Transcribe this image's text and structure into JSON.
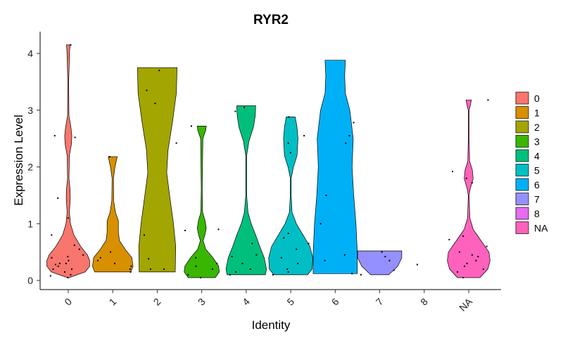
{
  "chart_data": {
    "type": "violin",
    "title": "RYR2",
    "xlabel": "Identity",
    "ylabel": "Expression Level",
    "categories": [
      "0",
      "1",
      "2",
      "3",
      "4",
      "5",
      "6",
      "7",
      "8",
      "NA"
    ],
    "ylim": [
      0,
      4.2
    ],
    "yticks": [
      0,
      1,
      2,
      3,
      4
    ],
    "legend_position": "right",
    "colors": [
      "#F8766D",
      "#D89000",
      "#A3A500",
      "#39B600",
      "#00BF7D",
      "#00BFC4",
      "#00B0F6",
      "#9590FF",
      "#E76BF3",
      "#FF62BC"
    ],
    "violins": [
      {
        "category": "0",
        "y_min": 0.05,
        "y_max": 4.15,
        "profile": [
          [
            0.05,
            0.03
          ],
          [
            0.15,
            0.75
          ],
          [
            0.25,
            0.95
          ],
          [
            0.35,
            0.95
          ],
          [
            0.45,
            0.85
          ],
          [
            0.6,
            0.55
          ],
          [
            0.8,
            0.25
          ],
          [
            1.0,
            0.1
          ],
          [
            1.2,
            0.05
          ],
          [
            1.45,
            0.09
          ],
          [
            1.6,
            0.08
          ],
          [
            1.8,
            0.03
          ],
          [
            2.2,
            0.05
          ],
          [
            2.4,
            0.14
          ],
          [
            2.55,
            0.16
          ],
          [
            2.7,
            0.12
          ],
          [
            2.9,
            0.03
          ],
          [
            3.5,
            0.02
          ],
          [
            4.05,
            0.06
          ],
          [
            4.15,
            0.08
          ]
        ]
      },
      {
        "category": "1",
        "y_min": 0.15,
        "y_max": 2.18,
        "profile": [
          [
            0.15,
            0.8
          ],
          [
            0.25,
            0.9
          ],
          [
            0.4,
            0.85
          ],
          [
            0.55,
            0.55
          ],
          [
            0.7,
            0.3
          ],
          [
            0.85,
            0.25
          ],
          [
            1.05,
            0.25
          ],
          [
            1.2,
            0.12
          ],
          [
            1.4,
            0.04
          ],
          [
            1.8,
            0.03
          ],
          [
            2.0,
            0.1
          ],
          [
            2.18,
            0.2
          ]
        ]
      },
      {
        "category": "2",
        "y_min": 0.15,
        "y_max": 3.75,
        "profile": [
          [
            0.15,
            0.8
          ],
          [
            0.6,
            0.82
          ],
          [
            1.0,
            0.72
          ],
          [
            1.5,
            0.55
          ],
          [
            1.9,
            0.42
          ],
          [
            2.3,
            0.48
          ],
          [
            2.8,
            0.68
          ],
          [
            3.3,
            0.85
          ],
          [
            3.75,
            0.88
          ]
        ]
      },
      {
        "category": "3",
        "y_min": 0.05,
        "y_max": 2.72,
        "profile": [
          [
            0.05,
            0.6
          ],
          [
            0.15,
            0.78
          ],
          [
            0.25,
            0.75
          ],
          [
            0.4,
            0.5
          ],
          [
            0.55,
            0.18
          ],
          [
            0.7,
            0.06
          ],
          [
            0.8,
            0.14
          ],
          [
            0.92,
            0.2
          ],
          [
            1.05,
            0.15
          ],
          [
            1.2,
            0.04
          ],
          [
            1.6,
            0.02
          ],
          [
            2.5,
            0.05
          ],
          [
            2.65,
            0.18
          ],
          [
            2.72,
            0.2
          ]
        ]
      },
      {
        "category": "4",
        "y_min": 0.1,
        "y_max": 3.08,
        "profile": [
          [
            0.1,
            0.85
          ],
          [
            0.2,
            0.9
          ],
          [
            0.4,
            0.8
          ],
          [
            0.6,
            0.6
          ],
          [
            0.8,
            0.42
          ],
          [
            1.0,
            0.22
          ],
          [
            1.2,
            0.08
          ],
          [
            1.5,
            0.02
          ],
          [
            2.2,
            0.02
          ],
          [
            2.45,
            0.12
          ],
          [
            2.7,
            0.32
          ],
          [
            2.9,
            0.4
          ],
          [
            3.08,
            0.42
          ]
        ]
      },
      {
        "category": "5",
        "y_min": 0.1,
        "y_max": 2.88,
        "profile": [
          [
            0.1,
            0.75
          ],
          [
            0.2,
            0.95
          ],
          [
            0.4,
            0.98
          ],
          [
            0.6,
            0.85
          ],
          [
            0.8,
            0.55
          ],
          [
            1.0,
            0.25
          ],
          [
            1.2,
            0.06
          ],
          [
            1.5,
            0.02
          ],
          [
            1.8,
            0.02
          ],
          [
            2.0,
            0.12
          ],
          [
            2.2,
            0.28
          ],
          [
            2.5,
            0.32
          ],
          [
            2.7,
            0.28
          ],
          [
            2.88,
            0.2
          ]
        ]
      },
      {
        "category": "6",
        "y_min": 0.12,
        "y_max": 3.88,
        "profile": [
          [
            0.12,
            0.98
          ],
          [
            0.5,
            0.98
          ],
          [
            1.0,
            0.92
          ],
          [
            1.5,
            0.82
          ],
          [
            2.0,
            0.75
          ],
          [
            2.5,
            0.8
          ],
          [
            3.0,
            0.65
          ],
          [
            3.3,
            0.45
          ],
          [
            3.6,
            0.42
          ],
          [
            3.88,
            0.45
          ]
        ]
      },
      {
        "category": "7",
        "y_min": 0.1,
        "y_max": 0.52,
        "profile": [
          [
            0.1,
            0.4
          ],
          [
            0.25,
            0.8
          ],
          [
            0.4,
            0.98
          ],
          [
            0.52,
            0.98
          ]
        ]
      },
      {
        "category": "8",
        "y_min": 0.28,
        "y_max": 0.28,
        "profile": []
      },
      {
        "category": "NA",
        "y_min": 0.05,
        "y_max": 3.18,
        "profile": [
          [
            0.05,
            0.5
          ],
          [
            0.2,
            0.85
          ],
          [
            0.35,
            0.95
          ],
          [
            0.5,
            0.9
          ],
          [
            0.7,
            0.55
          ],
          [
            0.9,
            0.2
          ],
          [
            1.1,
            0.05
          ],
          [
            1.5,
            0.02
          ],
          [
            1.6,
            0.06
          ],
          [
            1.8,
            0.2
          ],
          [
            1.95,
            0.16
          ],
          [
            2.1,
            0.04
          ],
          [
            2.5,
            0.02
          ],
          [
            3.0,
            0.02
          ],
          [
            3.1,
            0.08
          ],
          [
            3.18,
            0.12
          ]
        ]
      }
    ],
    "points": [
      [
        0,
        0.05
      ],
      [
        0,
        0.1
      ],
      [
        0,
        0.2
      ],
      [
        0,
        0.25
      ],
      [
        0,
        0.3
      ],
      [
        0,
        0.35
      ],
      [
        0,
        0.4
      ],
      [
        0,
        0.45
      ],
      [
        0,
        0.2
      ],
      [
        0,
        0.15
      ],
      [
        0,
        0.3
      ],
      [
        0,
        0.55
      ],
      [
        0,
        0.62
      ],
      [
        0,
        0.8
      ],
      [
        0,
        1.1
      ],
      [
        0,
        1.45
      ],
      [
        0,
        2.52
      ],
      [
        0,
        2.55
      ],
      [
        0,
        4.15
      ],
      [
        0,
        0.42
      ],
      [
        0,
        0.28
      ],
      [
        0,
        0.08
      ],
      [
        1,
        0.2
      ],
      [
        1,
        0.25
      ],
      [
        1,
        0.35
      ],
      [
        1,
        0.5
      ],
      [
        1,
        0.15
      ],
      [
        1,
        0.4
      ],
      [
        1,
        2.18
      ],
      [
        1,
        0.3
      ],
      [
        2,
        0.2
      ],
      [
        2,
        0.38
      ],
      [
        2,
        0.8
      ],
      [
        2,
        2.42
      ],
      [
        2,
        3.12
      ],
      [
        2,
        3.35
      ],
      [
        2,
        3.7
      ],
      [
        2,
        0.2
      ],
      [
        3,
        0.1
      ],
      [
        3,
        0.2
      ],
      [
        3,
        0.25
      ],
      [
        3,
        0.4
      ],
      [
        3,
        0.88
      ],
      [
        3,
        0.9
      ],
      [
        3,
        2.72
      ],
      [
        3,
        0.3
      ],
      [
        3,
        0.05
      ],
      [
        4,
        0.15
      ],
      [
        4,
        0.2
      ],
      [
        4,
        0.3
      ],
      [
        4,
        0.45
      ],
      [
        4,
        0.65
      ],
      [
        4,
        0.42
      ],
      [
        4,
        2.98
      ],
      [
        4,
        3.05
      ],
      [
        4,
        0.1
      ],
      [
        5,
        0.1
      ],
      [
        5,
        0.2
      ],
      [
        5,
        0.3
      ],
      [
        5,
        0.55
      ],
      [
        5,
        0.65
      ],
      [
        5,
        0.75
      ],
      [
        5,
        0.83
      ],
      [
        5,
        2.25
      ],
      [
        5,
        2.42
      ],
      [
        5,
        2.55
      ],
      [
        5,
        2.88
      ],
      [
        5,
        0.15
      ],
      [
        5,
        0.4
      ],
      [
        6,
        0.35
      ],
      [
        6,
        0.45
      ],
      [
        6,
        1.0
      ],
      [
        6,
        1.5
      ],
      [
        6,
        2.42
      ],
      [
        6,
        2.55
      ],
      [
        6,
        2.78
      ],
      [
        6,
        0.12
      ],
      [
        7,
        0.18
      ],
      [
        7,
        0.35
      ],
      [
        7,
        0.42
      ],
      [
        7,
        0.5
      ],
      [
        7,
        0.1
      ],
      [
        8,
        0.28
      ],
      [
        9,
        0.05
      ],
      [
        9,
        0.15
      ],
      [
        9,
        0.25
      ],
      [
        9,
        0.35
      ],
      [
        9,
        0.42
      ],
      [
        9,
        0.5
      ],
      [
        9,
        0.6
      ],
      [
        9,
        0.72
      ],
      [
        9,
        0.78
      ],
      [
        9,
        1.72
      ],
      [
        9,
        1.8
      ],
      [
        9,
        1.92
      ],
      [
        9,
        3.18
      ],
      [
        9,
        0.3
      ],
      [
        9,
        0.2
      ],
      [
        9,
        0.45
      ]
    ]
  }
}
